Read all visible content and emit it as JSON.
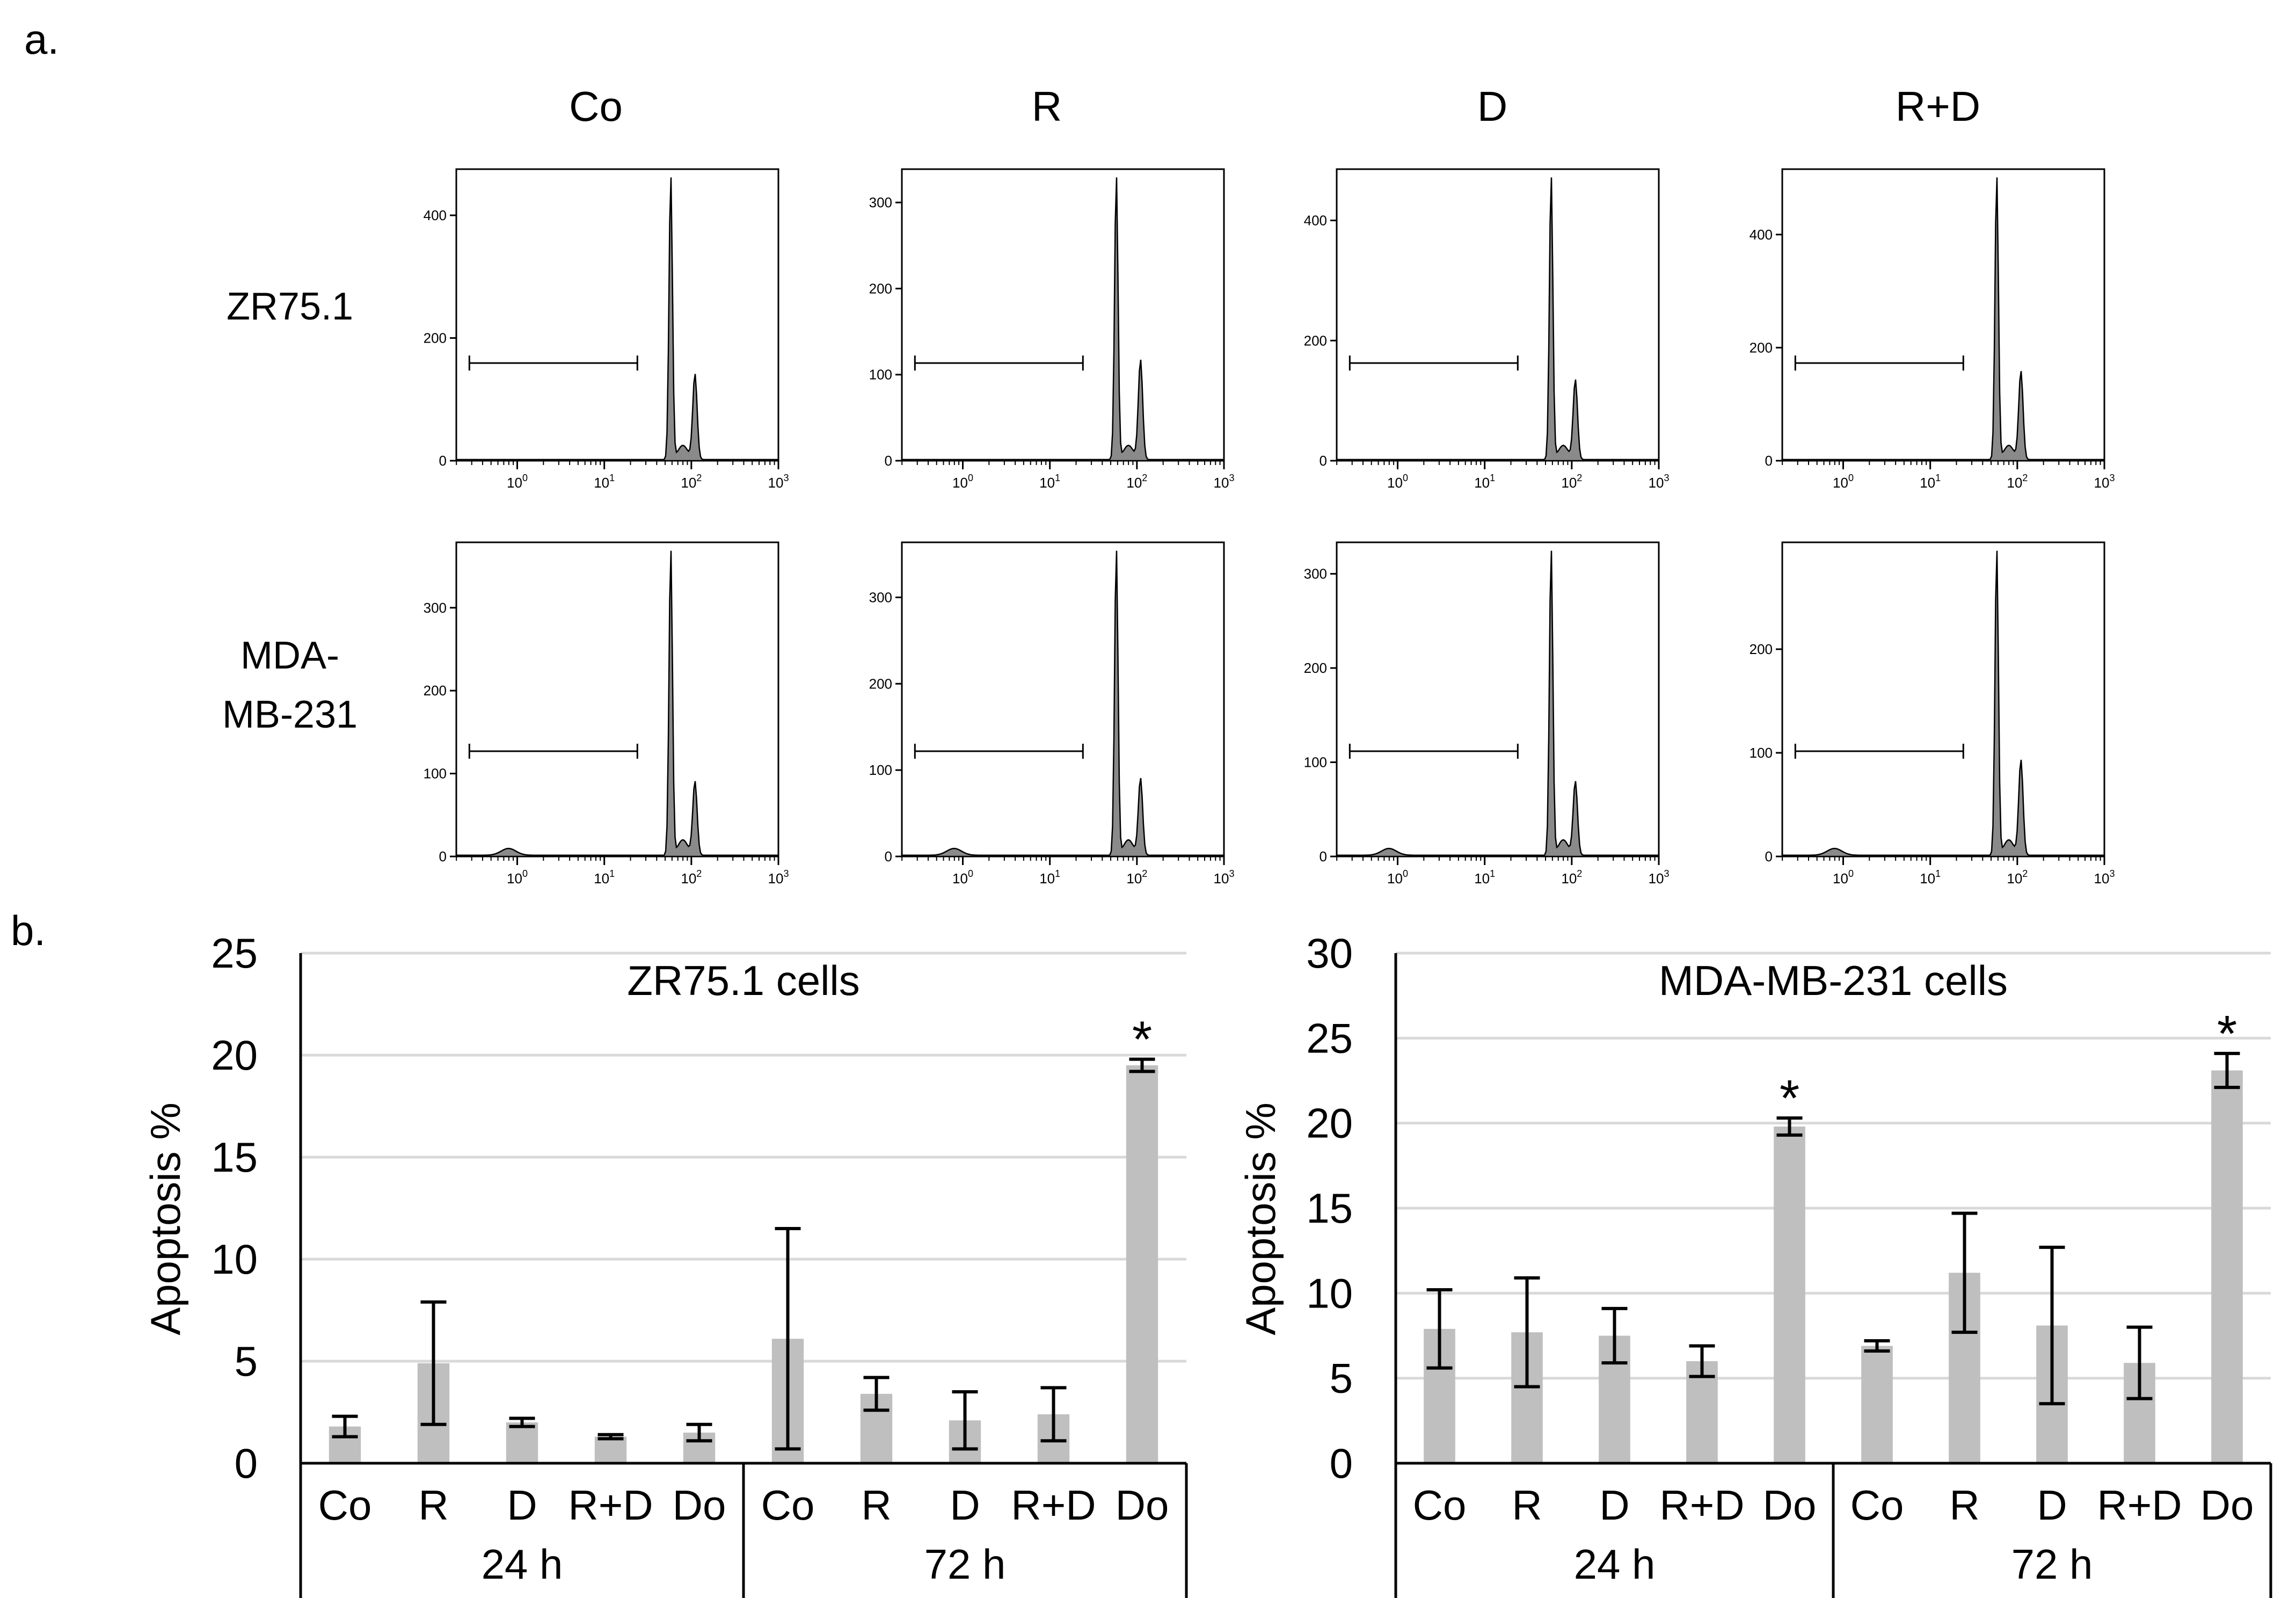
{
  "panel_a": {
    "label": "a.",
    "columns": [
      "Co",
      "R",
      "D",
      "R+D"
    ],
    "rows": [
      {
        "name": "ZR75.1",
        "name_lines": [
          "ZR75.1"
        ],
        "plots": [
          {
            "yticks": [
              "0",
              "200",
              "400"
            ],
            "ymax": 470
          },
          {
            "yticks": [
              "0",
              "100",
              "200",
              "300"
            ],
            "ymax": 335
          },
          {
            "yticks": [
              "0",
              "200",
              "400"
            ],
            "ymax": 480
          },
          {
            "yticks": [
              "0",
              "200",
              "400"
            ],
            "ymax": 510
          }
        ]
      },
      {
        "name": "MDA-MB-231",
        "name_lines": [
          "MDA-",
          "MB-231"
        ],
        "plots": [
          {
            "yticks": [
              "0",
              "100",
              "200",
              "300"
            ],
            "ymax": 375
          },
          {
            "yticks": [
              "0",
              "100",
              "200",
              "300"
            ],
            "ymax": 360
          },
          {
            "yticks": [
              "0",
              "100",
              "200",
              "300"
            ],
            "ymax": 330
          },
          {
            "yticks": [
              "0",
              "100",
              "200"
            ],
            "ymax": 300
          }
        ]
      }
    ],
    "xticks": [
      {
        "base": "10",
        "exp": "0"
      },
      {
        "base": "10",
        "exp": "1"
      },
      {
        "base": "10",
        "exp": "2"
      },
      {
        "base": "10",
        "exp": "3"
      }
    ]
  },
  "panel_b": {
    "label": "b.",
    "asterisk": "*"
  },
  "chart_data": [
    {
      "type": "bar",
      "title": "ZR75.1 cells",
      "ylabel": "Apoptosis %",
      "ylim": [
        0,
        25
      ],
      "yticks": [
        0,
        5,
        10,
        15,
        20,
        25
      ],
      "grid": true,
      "groups": [
        {
          "name": "24 h",
          "categories": [
            "Co",
            "R",
            "D",
            "R+D",
            "Do"
          ],
          "values": [
            1.8,
            4.9,
            2.0,
            1.3,
            1.5
          ],
          "errors": [
            0.5,
            3.0,
            0.2,
            0.1,
            0.4
          ],
          "significant": [
            false,
            false,
            false,
            false,
            false
          ]
        },
        {
          "name": "72 h",
          "categories": [
            "Co",
            "R",
            "D",
            "R+D",
            "Do"
          ],
          "values": [
            6.1,
            3.4,
            2.1,
            2.4,
            19.5
          ],
          "errors": [
            5.4,
            0.8,
            1.4,
            1.3,
            0.3
          ],
          "significant": [
            false,
            false,
            false,
            false,
            true
          ]
        }
      ]
    },
    {
      "type": "bar",
      "title": "MDA-MB-231 cells",
      "ylabel": "Apoptosis %",
      "ylim": [
        0,
        30
      ],
      "yticks": [
        0,
        5,
        10,
        15,
        20,
        25,
        30
      ],
      "grid": true,
      "groups": [
        {
          "name": "24 h",
          "categories": [
            "Co",
            "R",
            "D",
            "R+D",
            "Do"
          ],
          "values": [
            7.9,
            7.7,
            7.5,
            6.0,
            19.8
          ],
          "errors": [
            2.3,
            3.2,
            1.6,
            0.9,
            0.5
          ],
          "significant": [
            false,
            false,
            false,
            false,
            true
          ]
        },
        {
          "name": "72 h",
          "categories": [
            "Co",
            "R",
            "D",
            "R+D",
            "Do"
          ],
          "values": [
            6.9,
            11.2,
            8.1,
            5.9,
            23.1
          ],
          "errors": [
            0.3,
            3.5,
            4.6,
            2.1,
            1.0
          ],
          "significant": [
            false,
            false,
            false,
            false,
            true
          ]
        }
      ]
    }
  ]
}
